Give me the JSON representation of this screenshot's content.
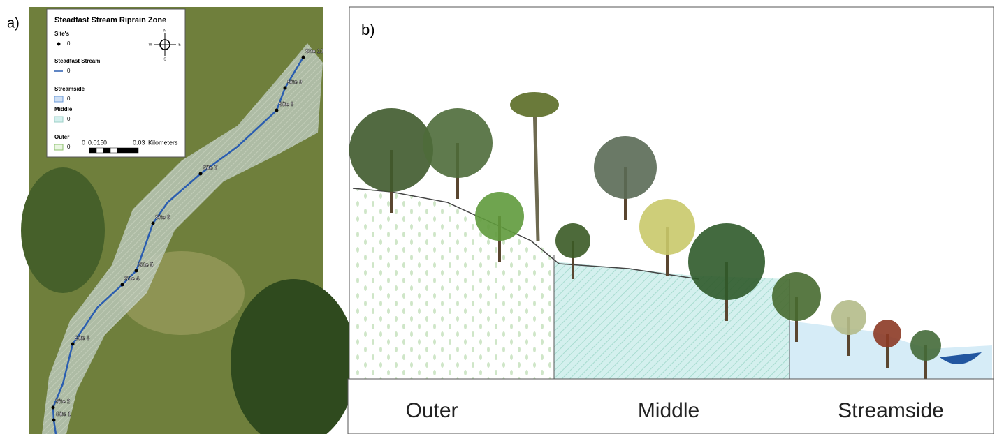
{
  "panel_a": {
    "label": "a)",
    "legend": {
      "title": "Steadfast Stream Riprain Zone",
      "items": [
        {
          "name": "Site's",
          "value": "0"
        },
        {
          "name": "Steadfast Stream",
          "value": "0"
        },
        {
          "name": "Streamside",
          "value": "0"
        },
        {
          "name": "Middle",
          "value": "0"
        },
        {
          "name": "Outer",
          "value": "0"
        }
      ],
      "compass": [
        "N",
        "W",
        "E",
        "S"
      ],
      "scale": [
        "0",
        "0.015",
        "0",
        "0.03",
        "Kilometers"
      ]
    },
    "sites": [
      "Site 1",
      "Site 2",
      "Site 3",
      "Site 4",
      "Site 5",
      "Site 6",
      "Site 7",
      "Site 8",
      "Site 9",
      "Site 10"
    ]
  },
  "panel_b": {
    "label": "b)",
    "zones": [
      "Outer",
      "Middle",
      "Streamside"
    ]
  }
}
